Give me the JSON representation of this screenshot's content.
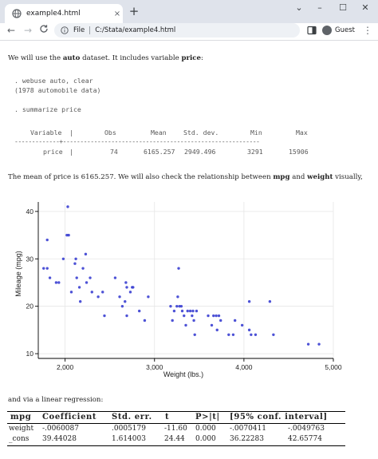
{
  "browser": {
    "tab_title": "example4.html",
    "tab_close": "×",
    "new_tab": "+",
    "win_min": "–",
    "win_max": "☐",
    "win_close": "✕",
    "win_collapse": "⌄",
    "back": "←",
    "forward": "→",
    "reload": "C",
    "omnibox_scheme": "File",
    "omnibox_url": "C:/Stata/example4.html",
    "profile": "Guest",
    "menu": "⋮"
  },
  "page": {
    "intro_pre": "We will use the ",
    "intro_dataset": "auto",
    "intro_mid": " dataset. It includes variable ",
    "intro_var": "price",
    "intro_end": ":",
    "code_block": ". webuse auto, clear\n(1978 automobile data)\n\n. summarize price",
    "summary": {
      "headers": [
        "Variable",
        "|",
        "Obs",
        "Mean",
        "Std. dev.",
        "Min",
        "Max"
      ],
      "rule": "-------------+---------------------------------------------------------",
      "row": [
        "price",
        "|",
        "74",
        "6165.257",
        "2949.496",
        "3291",
        "15906"
      ]
    },
    "mean_pre": "The mean of price is 6165.257. We will also check the relationship between ",
    "mean_var1": "mpg",
    "mean_mid": " and ",
    "mean_var2": "weight",
    "mean_end": " visually,",
    "regression_intro": "and via a linear regression:",
    "regression": {
      "headers": [
        "mpg",
        "Coefficient",
        "Std. err.",
        "t",
        "P>|t|",
        "[95% conf. interval]"
      ],
      "rows": [
        [
          "weight",
          "-.0060087",
          ".0005179",
          "-11.60",
          "0.000",
          "-.0070411",
          "-.0049763"
        ],
        [
          "_cons",
          "39.44028",
          "1.614003",
          "24.44",
          "0.000",
          "36.22283",
          "42.65774"
        ]
      ]
    }
  },
  "chart_data": {
    "type": "scatter",
    "xlabel": "Weight (lbs.)",
    "ylabel": "Mileage (mpg)",
    "xlim": [
      1700,
      5000
    ],
    "ylim": [
      9,
      42
    ],
    "xticks": [
      2000,
      3000,
      4000,
      5000
    ],
    "xtick_labels": [
      "2,000",
      "3,000",
      "4,000",
      "5,000"
    ],
    "yticks": [
      10,
      20,
      30,
      40
    ],
    "ytick_labels": [
      "10",
      "20",
      "30",
      "40"
    ],
    "grid": true,
    "marker_color": "#3a3fd1",
    "points": [
      [
        1760,
        28
      ],
      [
        1800,
        34
      ],
      [
        1800,
        28
      ],
      [
        1830,
        26
      ],
      [
        1900,
        25
      ],
      [
        1930,
        25
      ],
      [
        1980,
        30
      ],
      [
        2020,
        35
      ],
      [
        2030,
        41
      ],
      [
        2040,
        35
      ],
      [
        2070,
        23
      ],
      [
        2110,
        29
      ],
      [
        2120,
        30
      ],
      [
        2130,
        26
      ],
      [
        2160,
        24
      ],
      [
        2170,
        21
      ],
      [
        2200,
        28
      ],
      [
        2230,
        31
      ],
      [
        2240,
        25
      ],
      [
        2280,
        26
      ],
      [
        2300,
        23
      ],
      [
        2370,
        22
      ],
      [
        2420,
        23
      ],
      [
        2440,
        18
      ],
      [
        2560,
        26
      ],
      [
        2610,
        22
      ],
      [
        2640,
        20
      ],
      [
        2670,
        21
      ],
      [
        2680,
        25
      ],
      [
        2690,
        18
      ],
      [
        2690,
        24
      ],
      [
        2730,
        23
      ],
      [
        2750,
        24
      ],
      [
        2760,
        24
      ],
      [
        2830,
        19
      ],
      [
        2890,
        17
      ],
      [
        2930,
        22
      ],
      [
        3180,
        20
      ],
      [
        3200,
        17
      ],
      [
        3220,
        19
      ],
      [
        3250,
        20
      ],
      [
        3260,
        22
      ],
      [
        3270,
        28
      ],
      [
        3280,
        20
      ],
      [
        3300,
        20
      ],
      [
        3310,
        19
      ],
      [
        3330,
        18
      ],
      [
        3350,
        16
      ],
      [
        3370,
        19
      ],
      [
        3400,
        19
      ],
      [
        3420,
        18
      ],
      [
        3430,
        19
      ],
      [
        3440,
        17
      ],
      [
        3450,
        14
      ],
      [
        3470,
        19
      ],
      [
        3600,
        18
      ],
      [
        3640,
        16
      ],
      [
        3660,
        18
      ],
      [
        3690,
        18
      ],
      [
        3700,
        15
      ],
      [
        3720,
        18
      ],
      [
        3740,
        17
      ],
      [
        3830,
        14
      ],
      [
        3880,
        14
      ],
      [
        3900,
        17
      ],
      [
        3980,
        16
      ],
      [
        4060,
        21
      ],
      [
        4060,
        15
      ],
      [
        4080,
        14
      ],
      [
        4130,
        14
      ],
      [
        4290,
        21
      ],
      [
        4330,
        14
      ],
      [
        4720,
        12
      ],
      [
        4840,
        12
      ]
    ]
  }
}
